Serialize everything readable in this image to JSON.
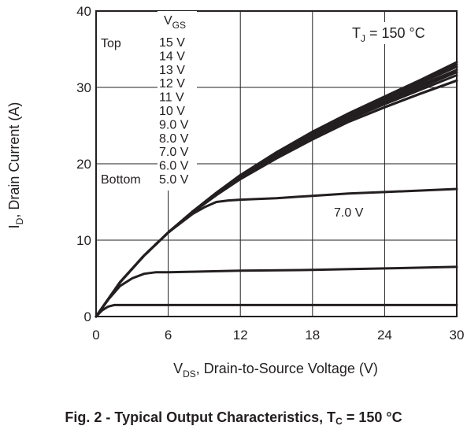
{
  "chart_data": {
    "type": "line",
    "xlabel": {
      "main": "V",
      "sub": "DS",
      "rest": ", Drain-to-Source Voltage (V)"
    },
    "ylabel": {
      "main": "I",
      "sub": "D",
      "rest": ", Drain Current (A)"
    },
    "xlim": [
      0,
      30
    ],
    "ylim": [
      0,
      40
    ],
    "x_ticks": [
      0,
      6,
      12,
      18,
      24,
      30
    ],
    "y_ticks": [
      0,
      10,
      20,
      30,
      40
    ],
    "grid": true,
    "annotation_temp": {
      "main": "T",
      "sub": "J",
      "rest": " = 150 °C"
    },
    "legend": {
      "header_main": "V",
      "header_sub": "GS",
      "top_label": "Top",
      "bottom_label": "Bottom",
      "entries": [
        "15 V",
        "14 V",
        "13 V",
        "12 V",
        "11 V",
        "10 V",
        "9.0 V",
        "8.0 V",
        "7.0 V",
        "6.0 V",
        "5.0 V"
      ]
    },
    "curve_label": "7.0 V",
    "series": [
      {
        "x": [
          0,
          2,
          4,
          6,
          8,
          10,
          12,
          15,
          18,
          21,
          24,
          27,
          30
        ],
        "y": [
          0,
          4.5,
          8.0,
          11.0,
          13.7,
          16.2,
          18.5,
          21.5,
          24.2,
          26.6,
          28.8,
          31.0,
          33.3
        ]
      },
      {
        "x": [
          0,
          2,
          4,
          6,
          8,
          10,
          12,
          15,
          18,
          21,
          24,
          27,
          30
        ],
        "y": [
          0,
          4.5,
          8.0,
          11.0,
          13.7,
          16.2,
          18.5,
          21.5,
          24.1,
          26.5,
          28.6,
          30.8,
          33.0
        ]
      },
      {
        "x": [
          0,
          2,
          4,
          6,
          8,
          10,
          12,
          15,
          18,
          21,
          24,
          27,
          30
        ],
        "y": [
          0,
          4.5,
          8.0,
          11.0,
          13.7,
          16.2,
          18.5,
          21.4,
          24.0,
          26.4,
          28.5,
          30.6,
          32.7
        ]
      },
      {
        "x": [
          0,
          2,
          4,
          6,
          8,
          10,
          12,
          15,
          18,
          21,
          24,
          27,
          30
        ],
        "y": [
          0,
          4.5,
          8.0,
          11.0,
          13.7,
          16.2,
          18.4,
          21.3,
          23.9,
          26.2,
          28.3,
          30.3,
          32.3
        ]
      },
      {
        "x": [
          0,
          2,
          4,
          6,
          8,
          10,
          12,
          15,
          18,
          21,
          24,
          27,
          30
        ],
        "y": [
          0,
          4.5,
          8.0,
          11.0,
          13.7,
          16.1,
          18.3,
          21.1,
          23.7,
          26.0,
          28.1,
          30.0,
          32.0
        ]
      },
      {
        "x": [
          0,
          2,
          4,
          6,
          8,
          10,
          12,
          15,
          18,
          21,
          24,
          27,
          30
        ],
        "y": [
          0,
          4.5,
          8.0,
          11.0,
          13.6,
          16.0,
          18.2,
          20.9,
          23.5,
          25.8,
          27.8,
          29.7,
          31.6
        ]
      },
      {
        "x": [
          0,
          2,
          4,
          6,
          8,
          10,
          12,
          15,
          18,
          21,
          24,
          27,
          30
        ],
        "y": [
          0,
          4.5,
          8.0,
          11.0,
          13.6,
          15.9,
          18.0,
          20.7,
          23.2,
          25.5,
          27.4,
          29.2,
          30.9
        ]
      },
      {
        "x": [
          0,
          2,
          4,
          6,
          8,
          10,
          12,
          15,
          18,
          21,
          24,
          27,
          30
        ],
        "y": [
          0,
          4.5,
          8.0,
          11.0,
          13.6,
          15.9,
          18.0,
          20.7,
          23.2,
          25.5,
          27.4,
          29.2,
          30.9
        ]
      },
      {
        "x": [
          0,
          2,
          4,
          6,
          8,
          9,
          10,
          11,
          12,
          15,
          18,
          21,
          24,
          27,
          30
        ],
        "y": [
          0,
          4.5,
          8.0,
          11.0,
          13.4,
          14.3,
          15.0,
          15.2,
          15.3,
          15.5,
          15.8,
          16.1,
          16.3,
          16.5,
          16.7
        ]
      },
      {
        "x": [
          0,
          1,
          2,
          3,
          4,
          5,
          6,
          9,
          12,
          18,
          24,
          30
        ],
        "y": [
          0,
          2.2,
          4.0,
          5.0,
          5.6,
          5.8,
          5.8,
          5.9,
          6.0,
          6.1,
          6.3,
          6.5
        ]
      },
      {
        "x": [
          0,
          0.5,
          1,
          1.5,
          2,
          3,
          6,
          12,
          18,
          24,
          30
        ],
        "y": [
          0,
          0.8,
          1.3,
          1.5,
          1.5,
          1.5,
          1.5,
          1.5,
          1.5,
          1.5,
          1.5
        ]
      }
    ]
  },
  "caption": {
    "prefix": "Fig. 2 - Typical Output Characteristics, T",
    "sub": "C",
    "suffix": " = 150 °C"
  }
}
